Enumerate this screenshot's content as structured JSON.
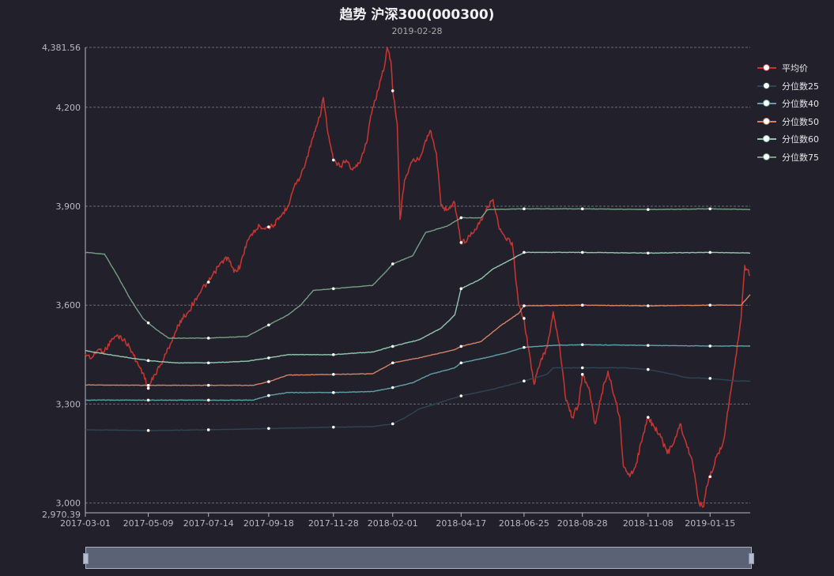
{
  "chart_data": {
    "type": "line",
    "title": "趋势 沪深300(000300)",
    "subtitle": "2019-02-28",
    "ylim": [
      2970.39,
      4381.56
    ],
    "y_ticks": [
      "4,381.56",
      "4,200",
      "3,900",
      "3,600",
      "3,300",
      "3,000",
      "2,970.39"
    ],
    "y_tick_values": [
      4381.56,
      4200,
      3900,
      3600,
      3300,
      3000,
      2970.39
    ],
    "x_range": [
      "2017-03-01",
      "2019-02-28"
    ],
    "x_ticks": [
      "2017-03-01",
      "2017-05-09",
      "2017-07-14",
      "2017-09-18",
      "2017-11-28",
      "2018-02-01",
      "2018-04-17",
      "2018-06-25",
      "2018-08-28",
      "2018-11-08",
      "2019-01-15"
    ],
    "grid": true,
    "legend_position": "right",
    "series": [
      {
        "name": "平均价",
        "color": "#c23531",
        "points": [
          [
            "2017-03-01",
            3452
          ],
          [
            "2017-03-08",
            3440
          ],
          [
            "2017-03-15",
            3465
          ],
          [
            "2017-03-22",
            3460
          ],
          [
            "2017-03-29",
            3490
          ],
          [
            "2017-04-05",
            3510
          ],
          [
            "2017-04-12",
            3495
          ],
          [
            "2017-04-19",
            3470
          ],
          [
            "2017-04-26",
            3430
          ],
          [
            "2017-05-03",
            3395
          ],
          [
            "2017-05-09",
            3348
          ],
          [
            "2017-05-16",
            3390
          ],
          [
            "2017-05-23",
            3420
          ],
          [
            "2017-05-31",
            3470
          ],
          [
            "2017-06-08",
            3520
          ],
          [
            "2017-06-15",
            3560
          ],
          [
            "2017-06-22",
            3580
          ],
          [
            "2017-06-30",
            3620
          ],
          [
            "2017-07-07",
            3650
          ],
          [
            "2017-07-14",
            3670
          ],
          [
            "2017-07-21",
            3700
          ],
          [
            "2017-07-28",
            3730
          ],
          [
            "2017-08-04",
            3745
          ],
          [
            "2017-08-11",
            3700
          ],
          [
            "2017-08-18",
            3720
          ],
          [
            "2017-08-25",
            3790
          ],
          [
            "2017-09-01",
            3820
          ],
          [
            "2017-09-08",
            3840
          ],
          [
            "2017-09-15",
            3835
          ],
          [
            "2017-09-22",
            3840
          ],
          [
            "2017-09-29",
            3860
          ],
          [
            "2017-10-09",
            3900
          ],
          [
            "2017-10-16",
            3960
          ],
          [
            "2017-10-23",
            3990
          ],
          [
            "2017-10-30",
            4050
          ],
          [
            "2017-11-06",
            4110
          ],
          [
            "2017-11-13",
            4170
          ],
          [
            "2017-11-17",
            4230
          ],
          [
            "2017-11-22",
            4120
          ],
          [
            "2017-11-28",
            4040
          ],
          [
            "2017-12-05",
            4020
          ],
          [
            "2017-12-12",
            4040
          ],
          [
            "2017-12-19",
            4010
          ],
          [
            "2017-12-26",
            4030
          ],
          [
            "2018-01-03",
            4090
          ],
          [
            "2018-01-10",
            4200
          ],
          [
            "2018-01-17",
            4260
          ],
          [
            "2018-01-24",
            4340
          ],
          [
            "2018-01-26",
            4381.56
          ],
          [
            "2018-01-30",
            4340
          ],
          [
            "2018-02-01",
            4250
          ],
          [
            "2018-02-06",
            4150
          ],
          [
            "2018-02-09",
            3860
          ],
          [
            "2018-02-14",
            3980
          ],
          [
            "2018-02-23",
            4040
          ],
          [
            "2018-03-02",
            4040
          ],
          [
            "2018-03-09",
            4100
          ],
          [
            "2018-03-14",
            4130
          ],
          [
            "2018-03-21",
            4060
          ],
          [
            "2018-03-26",
            3900
          ],
          [
            "2018-04-02",
            3890
          ],
          [
            "2018-04-10",
            3910
          ],
          [
            "2018-04-17",
            3790
          ],
          [
            "2018-04-24",
            3800
          ],
          [
            "2018-05-02",
            3830
          ],
          [
            "2018-05-09",
            3860
          ],
          [
            "2018-05-16",
            3900
          ],
          [
            "2018-05-22",
            3920
          ],
          [
            "2018-05-29",
            3830
          ],
          [
            "2018-06-05",
            3800
          ],
          [
            "2018-06-12",
            3790
          ],
          [
            "2018-06-19",
            3600
          ],
          [
            "2018-06-25",
            3560
          ],
          [
            "2018-06-29",
            3480
          ],
          [
            "2018-07-06",
            3360
          ],
          [
            "2018-07-13",
            3430
          ],
          [
            "2018-07-20",
            3470
          ],
          [
            "2018-07-27",
            3580
          ],
          [
            "2018-08-03",
            3480
          ],
          [
            "2018-08-10",
            3310
          ],
          [
            "2018-08-17",
            3260
          ],
          [
            "2018-08-24",
            3300
          ],
          [
            "2018-08-28",
            3390
          ],
          [
            "2018-09-04",
            3350
          ],
          [
            "2018-09-11",
            3240
          ],
          [
            "2018-09-18",
            3330
          ],
          [
            "2018-09-25",
            3400
          ],
          [
            "2018-10-08",
            3260
          ],
          [
            "2018-10-12",
            3110
          ],
          [
            "2018-10-19",
            3080
          ],
          [
            "2018-10-26",
            3120
          ],
          [
            "2018-11-02",
            3200
          ],
          [
            "2018-11-08",
            3260
          ],
          [
            "2018-11-15",
            3230
          ],
          [
            "2018-11-22",
            3200
          ],
          [
            "2018-11-29",
            3150
          ],
          [
            "2018-12-06",
            3180
          ],
          [
            "2018-12-13",
            3240
          ],
          [
            "2018-12-20",
            3180
          ],
          [
            "2018-12-27",
            3120
          ],
          [
            "2019-01-03",
            3000
          ],
          [
            "2019-01-08",
            2990
          ],
          [
            "2019-01-11",
            3050
          ],
          [
            "2019-01-15",
            3080
          ],
          [
            "2019-01-22",
            3140
          ],
          [
            "2019-01-29",
            3180
          ],
          [
            "2019-02-01",
            3230
          ],
          [
            "2019-02-12",
            3440
          ],
          [
            "2019-02-18",
            3560
          ],
          [
            "2019-02-22",
            3720
          ],
          [
            "2019-02-28",
            3690
          ]
        ]
      },
      {
        "name": "分位数25",
        "color": "#2f4554",
        "points": [
          [
            "2017-03-01",
            3222
          ],
          [
            "2017-05-09",
            3220
          ],
          [
            "2017-07-14",
            3222
          ],
          [
            "2017-09-18",
            3226
          ],
          [
            "2017-11-28",
            3230
          ],
          [
            "2018-01-10",
            3232
          ],
          [
            "2018-02-01",
            3240
          ],
          [
            "2018-02-14",
            3258
          ],
          [
            "2018-03-02",
            3285
          ],
          [
            "2018-04-17",
            3325
          ],
          [
            "2018-05-22",
            3345
          ],
          [
            "2018-06-25",
            3370
          ],
          [
            "2018-07-20",
            3390
          ],
          [
            "2018-07-27",
            3410
          ],
          [
            "2018-08-28",
            3410
          ],
          [
            "2018-10-12",
            3410
          ],
          [
            "2018-11-08",
            3405
          ],
          [
            "2018-12-06",
            3390
          ],
          [
            "2018-12-20",
            3380
          ],
          [
            "2019-01-15",
            3378
          ],
          [
            "2019-02-12",
            3370
          ],
          [
            "2019-02-28",
            3370
          ]
        ]
      },
      {
        "name": "分位数40",
        "color": "#61a0a8",
        "points": [
          [
            "2017-03-01",
            3312
          ],
          [
            "2017-05-09",
            3312
          ],
          [
            "2017-07-14",
            3312
          ],
          [
            "2017-09-01",
            3312
          ],
          [
            "2017-09-18",
            3326
          ],
          [
            "2017-10-09",
            3335
          ],
          [
            "2017-11-28",
            3335
          ],
          [
            "2018-01-10",
            3338
          ],
          [
            "2018-02-01",
            3350
          ],
          [
            "2018-02-23",
            3365
          ],
          [
            "2018-03-14",
            3390
          ],
          [
            "2018-04-10",
            3410
          ],
          [
            "2018-04-17",
            3425
          ],
          [
            "2018-05-16",
            3442
          ],
          [
            "2018-06-05",
            3455
          ],
          [
            "2018-06-25",
            3472
          ],
          [
            "2018-07-27",
            3478
          ],
          [
            "2018-08-28",
            3480
          ],
          [
            "2018-11-08",
            3478
          ],
          [
            "2019-01-15",
            3476
          ],
          [
            "2019-02-28",
            3476
          ]
        ]
      },
      {
        "name": "分位数50",
        "color": "#d48265",
        "points": [
          [
            "2017-03-01",
            3358
          ],
          [
            "2017-05-09",
            3357
          ],
          [
            "2017-07-14",
            3357
          ],
          [
            "2017-09-01",
            3357
          ],
          [
            "2017-09-18",
            3368
          ],
          [
            "2017-10-09",
            3388
          ],
          [
            "2017-11-28",
            3390
          ],
          [
            "2018-01-10",
            3392
          ],
          [
            "2018-02-01",
            3425
          ],
          [
            "2018-03-02",
            3440
          ],
          [
            "2018-04-10",
            3465
          ],
          [
            "2018-04-17",
            3475
          ],
          [
            "2018-05-09",
            3490
          ],
          [
            "2018-05-29",
            3535
          ],
          [
            "2018-06-19",
            3575
          ],
          [
            "2018-06-25",
            3598
          ],
          [
            "2018-08-28",
            3600
          ],
          [
            "2018-11-08",
            3598
          ],
          [
            "2019-01-15",
            3600
          ],
          [
            "2019-02-18",
            3600
          ],
          [
            "2019-02-28",
            3632
          ]
        ]
      },
      {
        "name": "分位数60",
        "color": "#91c7ae",
        "points": [
          [
            "2017-03-01",
            3462
          ],
          [
            "2017-04-19",
            3440
          ],
          [
            "2017-05-09",
            3432
          ],
          [
            "2017-06-08",
            3425
          ],
          [
            "2017-07-14",
            3425
          ],
          [
            "2017-08-25",
            3430
          ],
          [
            "2017-09-18",
            3440
          ],
          [
            "2017-10-09",
            3450
          ],
          [
            "2017-11-28",
            3450
          ],
          [
            "2018-01-10",
            3458
          ],
          [
            "2018-02-01",
            3475
          ],
          [
            "2018-03-02",
            3495
          ],
          [
            "2018-03-26",
            3530
          ],
          [
            "2018-04-10",
            3570
          ],
          [
            "2018-04-17",
            3650
          ],
          [
            "2018-05-09",
            3680
          ],
          [
            "2018-05-22",
            3710
          ],
          [
            "2018-06-12",
            3740
          ],
          [
            "2018-06-25",
            3760
          ],
          [
            "2018-08-28",
            3760
          ],
          [
            "2018-11-08",
            3758
          ],
          [
            "2019-01-15",
            3760
          ],
          [
            "2019-02-28",
            3758
          ]
        ]
      },
      {
        "name": "分位数75",
        "color": "#749f83",
        "points": [
          [
            "2017-03-01",
            3760
          ],
          [
            "2017-03-22",
            3755
          ],
          [
            "2017-04-05",
            3690
          ],
          [
            "2017-04-19",
            3620
          ],
          [
            "2017-05-03",
            3560
          ],
          [
            "2017-05-16",
            3530
          ],
          [
            "2017-05-31",
            3500
          ],
          [
            "2017-07-14",
            3500
          ],
          [
            "2017-08-25",
            3505
          ],
          [
            "2017-09-18",
            3540
          ],
          [
            "2017-10-09",
            3570
          ],
          [
            "2017-10-23",
            3600
          ],
          [
            "2017-11-06",
            3645
          ],
          [
            "2017-11-28",
            3650
          ],
          [
            "2018-01-10",
            3660
          ],
          [
            "2018-01-24",
            3700
          ],
          [
            "2018-02-01",
            3725
          ],
          [
            "2018-02-23",
            3750
          ],
          [
            "2018-03-09",
            3820
          ],
          [
            "2018-04-02",
            3840
          ],
          [
            "2018-04-17",
            3865
          ],
          [
            "2018-05-09",
            3865
          ],
          [
            "2018-05-16",
            3890
          ],
          [
            "2018-06-25",
            3892
          ],
          [
            "2018-08-28",
            3892
          ],
          [
            "2018-11-08",
            3890
          ],
          [
            "2019-01-15",
            3892
          ],
          [
            "2019-02-28",
            3890
          ]
        ]
      }
    ]
  }
}
